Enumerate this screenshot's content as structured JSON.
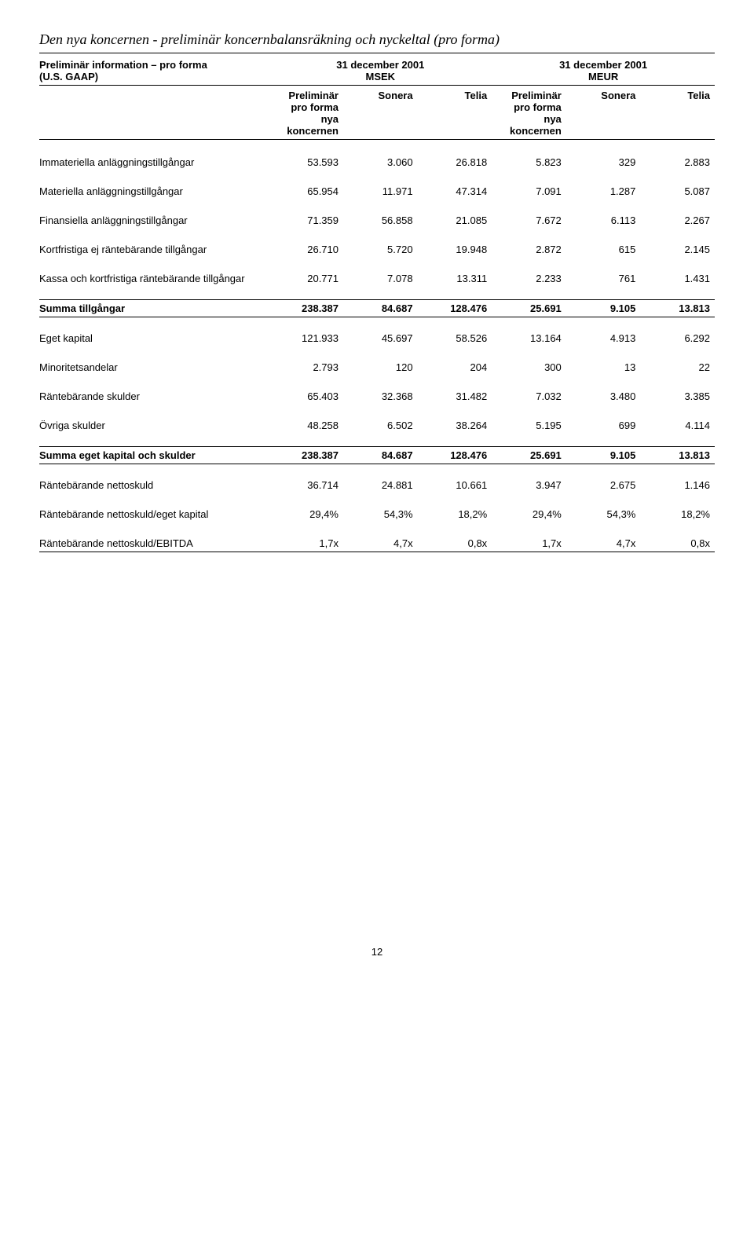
{
  "title": "Den nya koncernen - preliminär koncernbalansräkning och nyckeltal (pro forma)",
  "header": {
    "left1": "Preliminär information – pro forma",
    "left2": "(U.S. GAAP)",
    "date": "31 december 2001",
    "msek": "MSEK",
    "meur": "MEUR",
    "sub1": "Preliminär",
    "sub2": "pro forma",
    "sub3": "nya koncernen",
    "sonera": "Sonera",
    "telia": "Telia"
  },
  "rows": [
    {
      "label": "Immateriella anläggningstillgångar",
      "a": "53.593",
      "b": "3.060",
      "c": "26.818",
      "d": "5.823",
      "e": "329",
      "f": "2.883"
    },
    {
      "label": "Materiella anläggningstillgångar",
      "a": "65.954",
      "b": "11.971",
      "c": "47.314",
      "d": "7.091",
      "e": "1.287",
      "f": "5.087"
    },
    {
      "label": "Finansiella anläggningstillgångar",
      "a": "71.359",
      "b": "56.858",
      "c": "21.085",
      "d": "7.672",
      "e": "6.113",
      "f": "2.267"
    },
    {
      "label": "Kortfristiga ej räntebärande tillgångar",
      "a": "26.710",
      "b": "5.720",
      "c": "19.948",
      "d": "2.872",
      "e": "615",
      "f": "2.145"
    },
    {
      "label": "Kassa och kortfristiga räntebärande tillgångar",
      "a": "20.771",
      "b": "7.078",
      "c": "13.311",
      "d": "2.233",
      "e": "761",
      "f": "1.431"
    }
  ],
  "sum1": {
    "label": "Summa tillgångar",
    "a": "238.387",
    "b": "84.687",
    "c": "128.476",
    "d": "25.691",
    "e": "9.105",
    "f": "13.813"
  },
  "rows2": [
    {
      "label": "Eget kapital",
      "a": "121.933",
      "b": "45.697",
      "c": "58.526",
      "d": "13.164",
      "e": "4.913",
      "f": "6.292"
    },
    {
      "label": "Minoritetsandelar",
      "a": "2.793",
      "b": "120",
      "c": "204",
      "d": "300",
      "e": "13",
      "f": "22"
    },
    {
      "label": "Räntebärande skulder",
      "a": "65.403",
      "b": "32.368",
      "c": "31.482",
      "d": "7.032",
      "e": "3.480",
      "f": "3.385"
    },
    {
      "label": "Övriga skulder",
      "a": "48.258",
      "b": "6.502",
      "c": "38.264",
      "d": "5.195",
      "e": "699",
      "f": "4.114"
    }
  ],
  "sum2": {
    "label": "Summa eget kapital och skulder",
    "a": "238.387",
    "b": "84.687",
    "c": "128.476",
    "d": "25.691",
    "e": "9.105",
    "f": "13.813"
  },
  "rows3": [
    {
      "label": "Räntebärande nettoskuld",
      "a": "36.714",
      "b": "24.881",
      "c": "10.661",
      "d": "3.947",
      "e": "2.675",
      "f": "1.146"
    },
    {
      "label": "Räntebärande nettoskuld/eget kapital",
      "a": "29,4%",
      "b": "54,3%",
      "c": "18,2%",
      "d": "29,4%",
      "e": "54,3%",
      "f": "18,2%"
    },
    {
      "label": "Räntebärande nettoskuld/EBITDA",
      "a": "1,7x",
      "b": "4,7x",
      "c": "0,8x",
      "d": "1,7x",
      "e": "4,7x",
      "f": "0,8x"
    }
  ],
  "pageNum": "12"
}
